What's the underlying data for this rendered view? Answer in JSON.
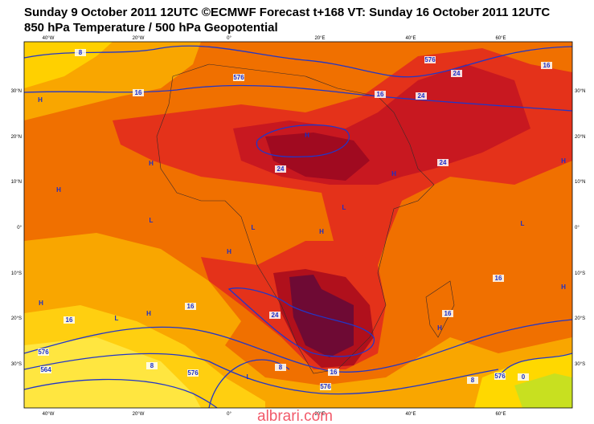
{
  "header": {
    "line1": "Sunday 9 October 2011 12UTC ©ECMWF Forecast t+168 VT: Sunday 16 October 2011 12UTC",
    "line2": "850 hPa Temperature / 500 hPa Geopotential"
  },
  "map": {
    "lon_labels": [
      "40°W",
      "20°W",
      "0°",
      "20°E",
      "40°E",
      "60°E"
    ],
    "lat_labels": [
      "30°N",
      "20°N",
      "10°N",
      "0°",
      "10°S",
      "20°S",
      "30°S"
    ],
    "contour_labels": [
      "8",
      "16",
      "576",
      "576",
      "16",
      "24",
      "24",
      "16",
      "24",
      "24",
      "16",
      "16",
      "24",
      "16",
      "16",
      "8",
      "8",
      "576",
      "576",
      "564",
      "576",
      "8",
      "576",
      "0",
      "16"
    ],
    "markers": [
      "H",
      "H",
      "H",
      "H",
      "H",
      "H",
      "L",
      "L",
      "L",
      "L",
      "H",
      "H",
      "L",
      "H",
      "H",
      "L",
      "H",
      "H"
    ]
  },
  "watermark": "albrari.com"
}
